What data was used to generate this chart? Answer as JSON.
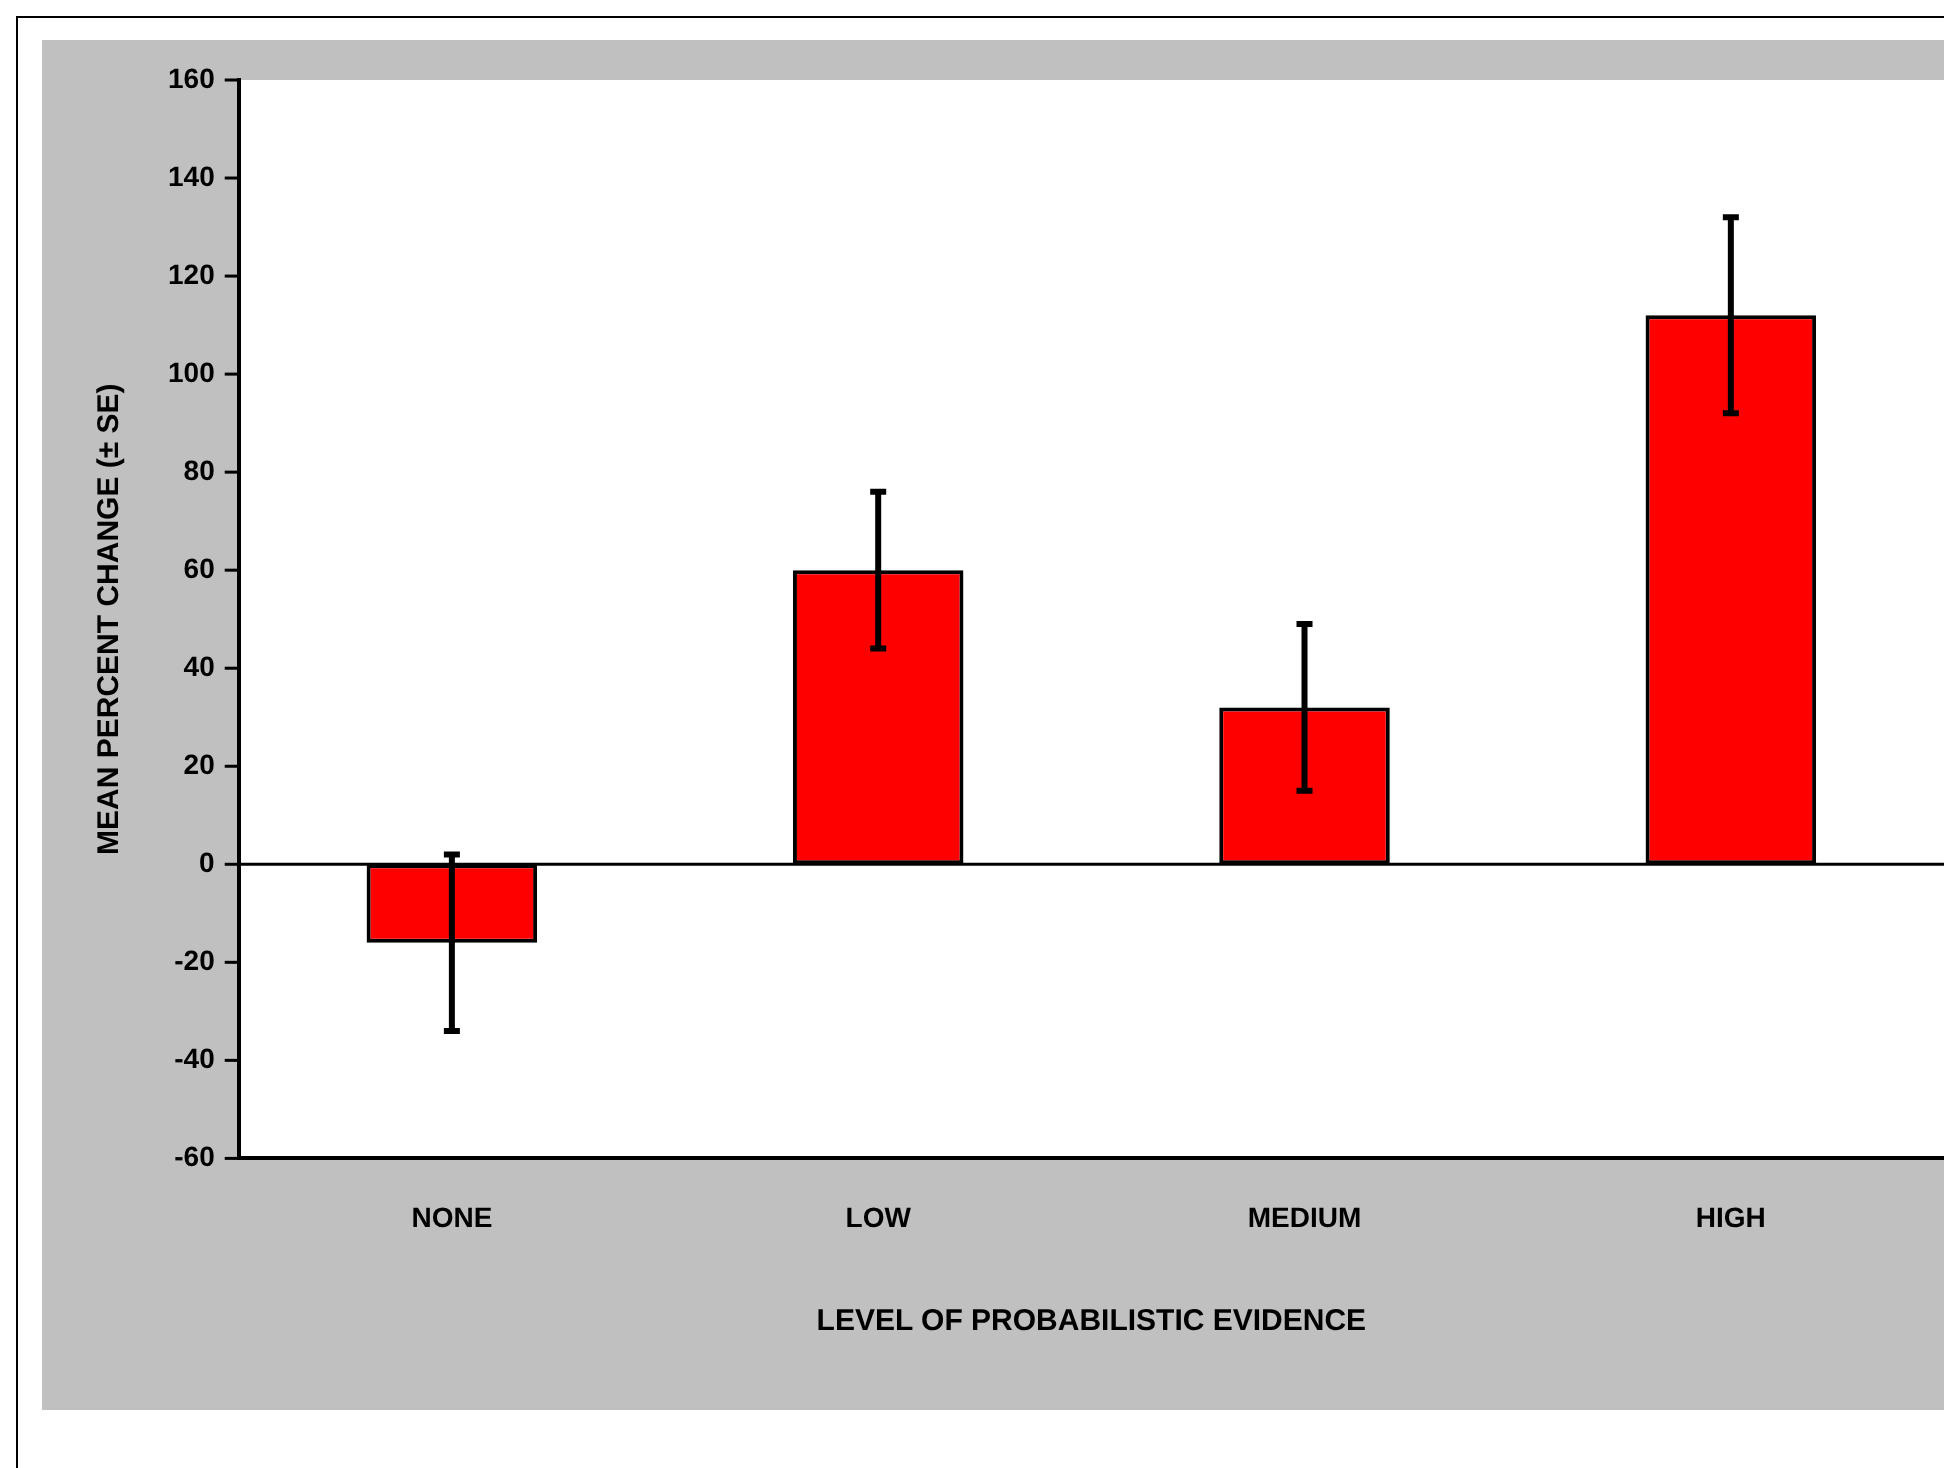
{
  "chart_data": {
    "type": "bar",
    "xlabel": "LEVEL OF PROBABILISTIC EVIDENCE",
    "ylabel": "MEAN PERCENT CHANGE (± SE)",
    "categories": [
      "NONE",
      "LOW",
      "MEDIUM",
      "HIGH"
    ],
    "values": [
      -16,
      60,
      32,
      112
    ],
    "errors": [
      18,
      16,
      17,
      20
    ],
    "color": "#ff0000",
    "ylim": [
      -60,
      160
    ],
    "yticks": [
      -60,
      -40,
      -20,
      0,
      20,
      40,
      60,
      80,
      100,
      120,
      140,
      160
    ],
    "ref_lines": [
      {
        "axis": "y",
        "value": 0,
        "color": "#000000"
      }
    ],
    "legend": false
  }
}
